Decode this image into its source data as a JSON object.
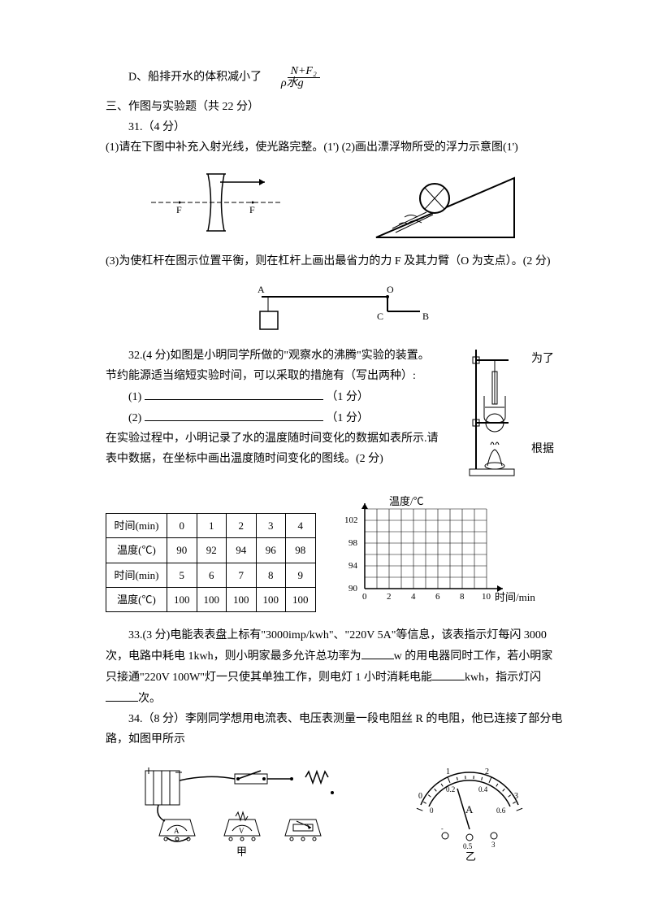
{
  "option_d": {
    "label": "D、船排开水的体积减小了",
    "frac_top": "N+F₂",
    "frac_bot": "ρ水g"
  },
  "section3": {
    "title": "三、作图与实验题（共 22 分）",
    "q31": {
      "num": "31.（4 分）",
      "p1": "(1)请在下图中补充入射光线，使光路完整。(1') (2)画出漂浮物所受的浮力示意图(1')",
      "p2": "(3)为使杠杆在图示位置平衡，则在杠杆上画出最省力的力 F 及其力臂（O 为支点）。(2 分)"
    },
    "q32": {
      "num": "32.(4 分)如图是小明同学所做的\"观察水的沸腾\"实验的装置。",
      "side1": "为了",
      "line1": "节约能源适当缩短实验时间，可以采取的措施有（写出两种）:",
      "blank1": "(1)",
      "blank1_pts": "（1 分）",
      "blank2": "(2)",
      "blank2_pts": "（1 分）",
      "line2a": "在实验过程中，小明记录了水的温度随时间变化的数据如表所示.请",
      "side2": "根据",
      "line2b": "表中数据，在坐标中画出温度随时间变化的图线。(2 分)"
    },
    "q33": {
      "text1": "33.(3 分)电能表表盘上标有\"3000imp/kwh\"、\"220V 5A\"等信息，该表指示灯每闪 3000 次，电路中耗电 1kwh，则小明家最多允许总功率为",
      "text2": "w 的用电器同时工作，若小明家只接通\"220V 100W\"灯一只使其单独工作，则电灯 1 小时消耗电能",
      "text3": "kwh，指示灯闪",
      "text4": "次。"
    },
    "q34": {
      "text": "34.（8 分）李刚同学想用电流表、电压表测量一段电阻丝 R 的电阻，他已连接了部分电路，如图甲所示",
      "caption_jia": "甲",
      "caption_yi": "乙"
    }
  },
  "table": {
    "row1_header": "时间(min)",
    "row1": [
      "0",
      "1",
      "2",
      "3",
      "4"
    ],
    "row2_header": "温度(℃)",
    "row2": [
      "90",
      "92",
      "94",
      "96",
      "98"
    ],
    "row3_header": "时间(min)",
    "row3": [
      "5",
      "6",
      "7",
      "8",
      "9"
    ],
    "row4_header": "温度(℃)",
    "row4": [
      "100",
      "100",
      "100",
      "100",
      "100"
    ]
  },
  "graph": {
    "ylabel": "温度/℃",
    "xlabel": "时间/min",
    "yticks": [
      "102",
      "98",
      "94",
      "90"
    ],
    "xticks": [
      "0",
      "2",
      "4",
      "6",
      "8",
      "10"
    ],
    "grid_cols": 10,
    "grid_rows": 7,
    "grid_color": "#000000",
    "bg": "#ffffff"
  },
  "lens_fig": {
    "F_label": "F"
  },
  "lever_fig": {
    "A": "A",
    "O": "O",
    "C": "C",
    "B": "B"
  },
  "ammeter_fig": {
    "top_scale": [
      "0",
      "1",
      "2",
      "3"
    ],
    "bot_scale": [
      "0",
      "0.2",
      "0.4",
      "0.6"
    ],
    "unit": "A",
    "bottom_05": "0.5",
    "bottom_3": "3"
  }
}
